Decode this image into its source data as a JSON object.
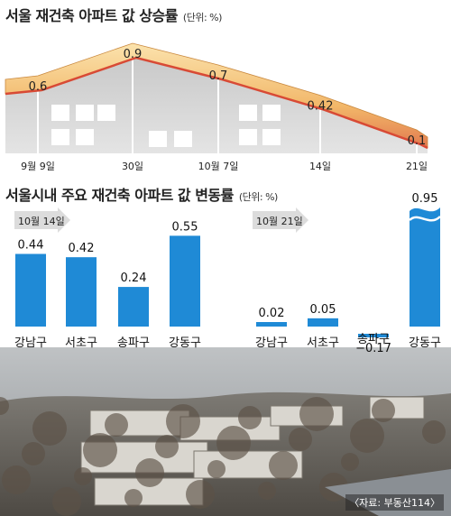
{
  "chart1": {
    "title": "서울 재건축 아파트 값 상승률",
    "unit": "(단위: %)"
  },
  "chart2": {
    "title": "서울시내 주요 재건축 아파트 값 변동률",
    "unit": "(단위: %)"
  },
  "source": "〈자료: 부동산114〉",
  "colors": {
    "bar": "#1f8ad6",
    "ribbon_top": "#f7c77a",
    "ribbon_bottom": "#d85a40",
    "wall": "#d0d0d0"
  },
  "chart_data": [
    {
      "type": "area",
      "title": "서울 재건축 아파트 값 상승률",
      "x": [
        "9월 9일",
        "30일",
        "10월 7일",
        "14일",
        "21일"
      ],
      "values": [
        0.6,
        0.9,
        0.7,
        0.42,
        0.1
      ],
      "ylim": [
        0,
        1.0
      ]
    },
    {
      "type": "bar",
      "title": "서울시내 주요 재건축 아파트 값 변동률",
      "categories": [
        "강남구",
        "서초구",
        "송파구",
        "강동구"
      ],
      "series": [
        {
          "name": "10월 14일",
          "values": [
            0.44,
            0.42,
            0.24,
            0.55
          ]
        },
        {
          "name": "10월 21일",
          "values": [
            0.02,
            0.05,
            -0.17,
            0.95
          ]
        }
      ]
    }
  ]
}
